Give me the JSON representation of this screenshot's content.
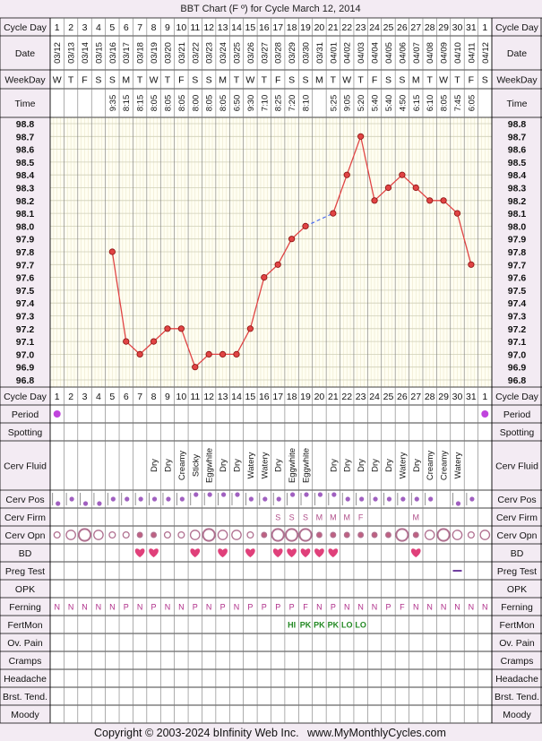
{
  "title": "BBT Chart (F º) for Cycle March 12, 2014",
  "footer": {
    "copyright": "Copyright © 2003-2024 bInfinity Web Inc.",
    "site": "www.MyMonthlyCycles.com"
  },
  "row_labels": {
    "cycle_day": "Cycle Day",
    "date": "Date",
    "weekday": "WeekDay",
    "time": "Time",
    "period": "Period",
    "spotting": "Spotting",
    "cerv_fluid": "Cerv Fluid",
    "cerv_pos": "Cerv Pos",
    "cerv_firm": "Cerv Firm",
    "cerv_opn": "Cerv Opn",
    "bd": "BD",
    "preg_test": "Preg Test",
    "opk": "OPK",
    "ferning": "Ferning",
    "fertmon": "FertMon",
    "ov_pain": "Ov. Pain",
    "cramps": "Cramps",
    "headache": "Headache",
    "brst_tend": "Brst. Tend.",
    "moody": "Moody"
  },
  "colors": {
    "line": "#e04444",
    "point": "#e04444",
    "period": "#c044dd",
    "heart": "#e0407a",
    "fertmon": "#228822",
    "ferning": "#b0308a",
    "grid_bg": "#fffef2",
    "gap": "#4a6cf0"
  },
  "cycle_days": [
    "1",
    "2",
    "3",
    "4",
    "5",
    "6",
    "7",
    "8",
    "9",
    "10",
    "11",
    "12",
    "13",
    "14",
    "15",
    "16",
    "17",
    "18",
    "19",
    "20",
    "21",
    "22",
    "23",
    "24",
    "25",
    "26",
    "27",
    "28",
    "29",
    "30",
    "31",
    "1"
  ],
  "dates": [
    "03/12",
    "03/13",
    "03/14",
    "03/15",
    "03/16",
    "03/17",
    "03/18",
    "03/19",
    "03/20",
    "03/21",
    "03/22",
    "03/23",
    "03/24",
    "03/25",
    "03/26",
    "03/27",
    "03/28",
    "03/29",
    "03/30",
    "03/31",
    "04/01",
    "04/02",
    "04/03",
    "04/04",
    "04/05",
    "04/06",
    "04/07",
    "04/08",
    "04/09",
    "04/10",
    "04/11",
    "04/12"
  ],
  "weekdays": [
    "W",
    "T",
    "F",
    "S",
    "S",
    "M",
    "T",
    "W",
    "T",
    "F",
    "S",
    "S",
    "M",
    "T",
    "W",
    "T",
    "F",
    "S",
    "S",
    "M",
    "T",
    "W",
    "T",
    "F",
    "S",
    "S",
    "M",
    "T",
    "W",
    "T",
    "F",
    "S"
  ],
  "times": [
    "",
    "",
    "",
    "",
    "9:35",
    "8:15",
    "8:15",
    "8:05",
    "8:05",
    "8:05",
    "8:00",
    "8:05",
    "8:05",
    "6:50",
    "9:30",
    "7:10",
    "8:25",
    "7:20",
    "8:10",
    "",
    "5:25",
    "9:05",
    "5:20",
    "5:40",
    "5:40",
    "4:50",
    "6:15",
    "6:10",
    "8:05",
    "7:45",
    "6:05",
    ""
  ],
  "chart_data": {
    "type": "line",
    "title": "BBT Chart (F º) for Cycle March 12, 2014",
    "x": [
      "1",
      "2",
      "3",
      "4",
      "5",
      "6",
      "7",
      "8",
      "9",
      "10",
      "11",
      "12",
      "13",
      "14",
      "15",
      "16",
      "17",
      "18",
      "19",
      "20",
      "21",
      "22",
      "23",
      "24",
      "25",
      "26",
      "27",
      "28",
      "29",
      "30",
      "31",
      "1"
    ],
    "series": [
      {
        "values": [
          null,
          null,
          null,
          null,
          97.8,
          97.1,
          97.0,
          97.1,
          97.2,
          97.2,
          96.9,
          97.0,
          97.0,
          97.0,
          97.2,
          97.6,
          97.7,
          97.9,
          98.0,
          null,
          98.1,
          98.4,
          98.7,
          98.2,
          98.3,
          98.4,
          98.3,
          98.2,
          98.2,
          98.1,
          97.7,
          null
        ]
      }
    ],
    "ylim": [
      96.8,
      98.8
    ],
    "yticks": [
      "98.8",
      "98.7",
      "98.6",
      "98.5",
      "98.4",
      "98.3",
      "98.2",
      "98.1",
      "98.0",
      "97.9",
      "97.8",
      "97.7",
      "97.6",
      "97.5",
      "97.4",
      "97.3",
      "97.2",
      "97.1",
      "97.0",
      "96.9",
      "96.8"
    ],
    "grid": true,
    "legend": "none"
  },
  "period": [
    1,
    0,
    0,
    0,
    0,
    0,
    0,
    0,
    0,
    0,
    0,
    0,
    0,
    0,
    0,
    0,
    0,
    0,
    0,
    0,
    0,
    0,
    0,
    0,
    0,
    0,
    0,
    0,
    0,
    0,
    0,
    1
  ],
  "cerv_fluid": [
    "",
    "",
    "",
    "",
    "",
    "",
    "",
    "Dry",
    "Dry",
    "Creamy",
    "Sticky",
    "Eggwhite",
    "Dry",
    "Dry",
    "Watery",
    "Watery",
    "Dry",
    "Eggwhite",
    "Eggwhite",
    "",
    "Dry",
    "Dry",
    "Dry",
    "Dry",
    "Dry",
    "Watery",
    "Dry",
    "Creamy",
    "Creamy",
    "Watery",
    "",
    ""
  ],
  "cerv_pos": [
    "low",
    "mid",
    "low",
    "low",
    "mid",
    "mid",
    "mid",
    "mid",
    "mid",
    "mid",
    "high",
    "high",
    "high",
    "high",
    "mid",
    "mid",
    "mid",
    "high",
    "high",
    "high",
    "high",
    "mid",
    "mid",
    "mid",
    "mid",
    "mid",
    "mid",
    "mid",
    "",
    "low",
    "mid",
    ""
  ],
  "cerv_firm": [
    "",
    "",
    "",
    "",
    "",
    "",
    "",
    "",
    "",
    "",
    "",
    "",
    "",
    "",
    "",
    "",
    "S",
    "S",
    "S",
    "M",
    "M",
    "M",
    "F",
    "",
    "",
    "",
    "M",
    "",
    "",
    "",
    "",
    ""
  ],
  "cerv_opn": [
    "sm",
    "md",
    "lg",
    "md",
    "sm",
    "sm",
    "dot",
    "dot",
    "sm",
    "sm",
    "md",
    "lg",
    "md",
    "md",
    "sm",
    "dot",
    "lg",
    "lg",
    "lg",
    "dot",
    "dot",
    "dot",
    "dot",
    "dot",
    "dot",
    "lg",
    "dot",
    "md",
    "lg",
    "md",
    "sm",
    "md"
  ],
  "bd": [
    0,
    0,
    0,
    0,
    0,
    0,
    1,
    1,
    0,
    0,
    1,
    0,
    1,
    0,
    1,
    0,
    1,
    1,
    1,
    1,
    1,
    0,
    0,
    0,
    0,
    0,
    1,
    0,
    0,
    0,
    0,
    0
  ],
  "preg_test": [
    "",
    "",
    "",
    "",
    "",
    "",
    "",
    "",
    "",
    "",
    "",
    "",
    "",
    "",
    "",
    "",
    "",
    "",
    "",
    "",
    "",
    "",
    "",
    "",
    "",
    "",
    "",
    "",
    "",
    "neg",
    "",
    ""
  ],
  "ferning": [
    "N",
    "N",
    "N",
    "N",
    "N",
    "P",
    "N",
    "P",
    "N",
    "N",
    "P",
    "N",
    "P",
    "N",
    "P",
    "P",
    "P",
    "P",
    "F",
    "N",
    "P",
    "N",
    "N",
    "N",
    "P",
    "F",
    "N",
    "N",
    "N",
    "N",
    "N",
    "N"
  ],
  "fertmon": [
    "",
    "",
    "",
    "",
    "",
    "",
    "",
    "",
    "",
    "",
    "",
    "",
    "",
    "",
    "",
    "",
    "",
    "HI",
    "PK",
    "PK",
    "PK",
    "LO",
    "LO",
    "",
    "",
    "",
    "",
    "",
    "",
    "",
    "",
    ""
  ]
}
